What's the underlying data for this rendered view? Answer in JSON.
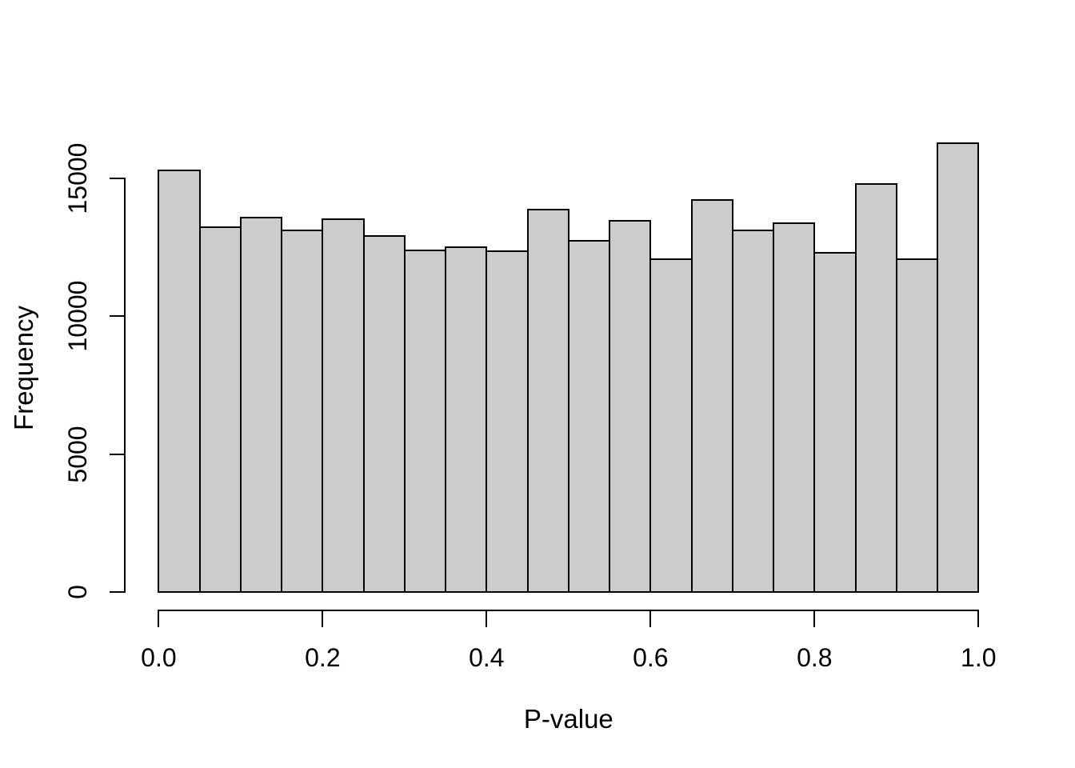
{
  "chart_data": {
    "type": "bar",
    "subtype": "histogram",
    "title": "",
    "xlabel": "P-value",
    "ylabel": "Frequency",
    "bin_edges": [
      0.0,
      0.05,
      0.1,
      0.15,
      0.2,
      0.25,
      0.3,
      0.35,
      0.4,
      0.45,
      0.5,
      0.55,
      0.6,
      0.65,
      0.7,
      0.75,
      0.8,
      0.85,
      0.9,
      0.95,
      1.0
    ],
    "values": [
      15280,
      13220,
      13580,
      13100,
      13520,
      12910,
      12390,
      12510,
      12350,
      13850,
      12730,
      13460,
      12060,
      14200,
      13120,
      13360,
      12310,
      14800,
      12060,
      16260
    ],
    "x_tick_values": [
      0.0,
      0.2,
      0.4,
      0.6,
      0.8,
      1.0
    ],
    "x_tick_labels": [
      "0.0",
      "0.2",
      "0.4",
      "0.6",
      "0.8",
      "1.0"
    ],
    "y_tick_values": [
      0,
      5000,
      10000,
      15000
    ],
    "y_tick_labels": [
      "0",
      "5000",
      "10000",
      "15000"
    ],
    "xlim": [
      0,
      1
    ],
    "ylim": [
      0,
      15000
    ],
    "grid": false,
    "legend": false,
    "colors": {
      "bar_fill": "#cccccc",
      "bar_stroke": "#000000",
      "axis": "#000000",
      "text": "#000000",
      "background": "#ffffff"
    }
  }
}
